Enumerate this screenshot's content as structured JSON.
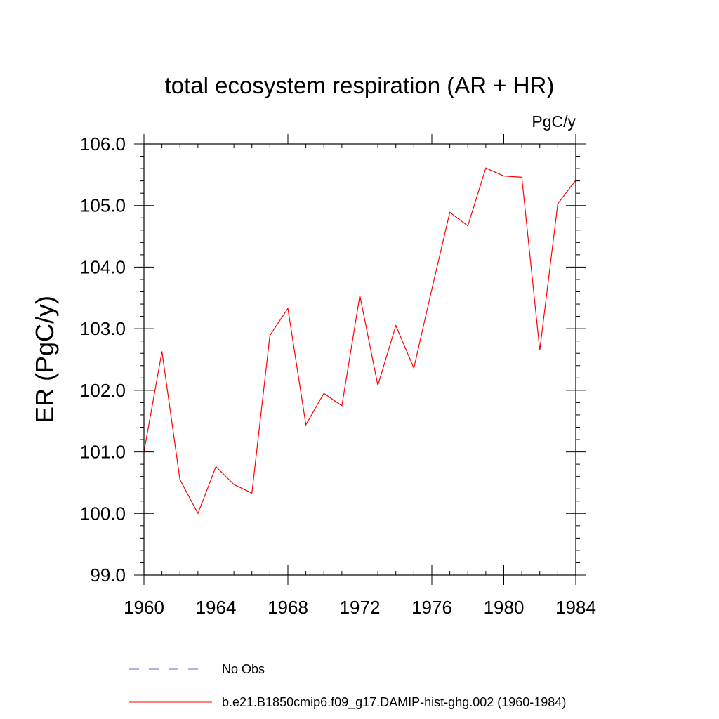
{
  "chart_data": {
    "type": "line",
    "title": "total ecosystem respiration (AR + HR)",
    "units_label": "PgC/y",
    "ylabel": "ER  (PgC/y)",
    "xlabel": "",
    "xlim": [
      1960,
      1984
    ],
    "ylim": [
      99.0,
      106.0
    ],
    "x_ticks": [
      "1960",
      "1964",
      "1968",
      "1972",
      "1976",
      "1980",
      "1984"
    ],
    "y_ticks": [
      "99.0",
      "100.0",
      "101.0",
      "102.0",
      "103.0",
      "104.0",
      "105.0",
      "106.0"
    ],
    "grid": false,
    "legend_position": "bottom",
    "series": [
      {
        "name": "b.e21.B1850cmip6.f09_g17.DAMIP-hist-ghg.002 (1960-1984)",
        "color": "#ff0000",
        "style": "solid",
        "x": [
          1960,
          1961,
          1962,
          1963,
          1964,
          1965,
          1966,
          1967,
          1968,
          1969,
          1970,
          1971,
          1972,
          1973,
          1974,
          1975,
          1976,
          1977,
          1978,
          1979,
          1980,
          1981,
          1982,
          1983,
          1984
        ],
        "values": [
          101.0,
          102.63,
          100.55,
          100.0,
          100.76,
          100.47,
          100.33,
          102.89,
          103.33,
          101.44,
          101.95,
          101.75,
          103.54,
          102.08,
          103.05,
          102.36,
          103.64,
          104.89,
          104.67,
          105.61,
          105.48,
          105.46,
          102.65,
          105.03,
          105.41
        ]
      }
    ],
    "legend": [
      {
        "label": "No Obs",
        "color": "#6666cc",
        "style": "dashed"
      },
      {
        "label": "b.e21.B1850cmip6.f09_g17.DAMIP-hist-ghg.002 (1960-1984)",
        "color": "#ff0000",
        "style": "solid"
      }
    ]
  }
}
